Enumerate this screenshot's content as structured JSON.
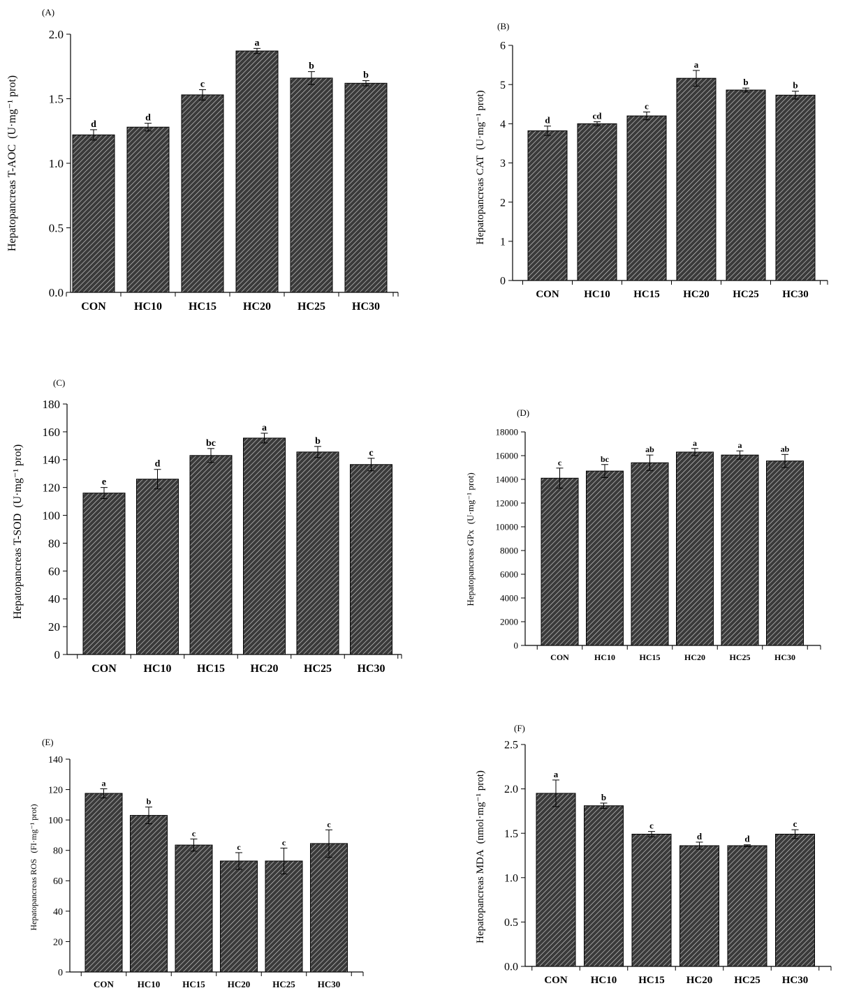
{
  "chart_data": [
    {
      "panel": "(A)",
      "type": "bar",
      "ylabel_main": "Hepatopancreas T-AOC",
      "ylabel_unit": "(U·mg⁻¹ prot)",
      "categories": [
        "CON",
        "HC10",
        "HC15",
        "HC20",
        "HC25",
        "HC30"
      ],
      "values": [
        1.22,
        1.28,
        1.53,
        1.87,
        1.66,
        1.62
      ],
      "errors": [
        0.04,
        0.03,
        0.04,
        0.02,
        0.05,
        0.02
      ],
      "letters": [
        "d",
        "d",
        "c",
        "a",
        "b",
        "b"
      ],
      "ylim": [
        0,
        2.0
      ],
      "yticks": [
        "0.0",
        "0.5",
        "1.0",
        "1.5",
        "2.0"
      ]
    },
    {
      "panel": "(B)",
      "type": "bar",
      "ylabel_main": "Hepatopancreas CAT",
      "ylabel_unit": "(U·mg⁻¹ prot)",
      "categories": [
        "CON",
        "HC10",
        "HC15",
        "HC20",
        "HC25",
        "HC30"
      ],
      "values": [
        3.82,
        4.0,
        4.2,
        5.16,
        4.86,
        4.73
      ],
      "errors": [
        0.12,
        0.05,
        0.1,
        0.2,
        0.05,
        0.1
      ],
      "letters": [
        "d",
        "cd",
        "c",
        "a",
        "b",
        "b"
      ],
      "ylim": [
        0,
        6
      ],
      "yticks": [
        "0",
        "1",
        "2",
        "3",
        "4",
        "5",
        "6"
      ]
    },
    {
      "panel": "(C)",
      "type": "bar",
      "ylabel_main": "Hepatopancreas T-SOD",
      "ylabel_unit": "(U·mg⁻¹ prot)",
      "categories": [
        "CON",
        "HC10",
        "HC15",
        "HC20",
        "HC25",
        "HC30"
      ],
      "values": [
        116,
        126,
        143,
        155.5,
        145.5,
        136.5
      ],
      "errors": [
        4,
        7,
        5,
        3.5,
        4,
        4.5
      ],
      "letters": [
        "e",
        "d",
        "bc",
        "a",
        "b",
        "c"
      ],
      "ylim": [
        0,
        180
      ],
      "yticks": [
        "0",
        "20",
        "40",
        "60",
        "80",
        "100",
        "120",
        "140",
        "160",
        "180"
      ]
    },
    {
      "panel": "(D)",
      "type": "bar",
      "ylabel_main": "Hepatopancreas GPx",
      "ylabel_unit": "(U·mg⁻¹ prot)",
      "categories": [
        "CON",
        "HC10",
        "HC15",
        "HC20",
        "HC25",
        "HC30"
      ],
      "values": [
        14100,
        14700,
        15400,
        16300,
        16050,
        15550
      ],
      "errors": [
        850,
        550,
        650,
        300,
        350,
        550
      ],
      "letters": [
        "c",
        "bc",
        "ab",
        "a",
        "a",
        "ab"
      ],
      "ylim": [
        0,
        18000
      ],
      "yticks": [
        "0",
        "2000",
        "4000",
        "6000",
        "8000",
        "10000",
        "12000",
        "14000",
        "16000",
        "18000"
      ]
    },
    {
      "panel": "(E)",
      "type": "bar",
      "ylabel_main": "Hepatopancreas ROS",
      "ylabel_unit": "(FI·mg⁻¹ prot)",
      "categories": [
        "CON",
        "HC10",
        "HC15",
        "HC20",
        "HC25",
        "HC30"
      ],
      "values": [
        117.5,
        103,
        83.5,
        73,
        73,
        84.5
      ],
      "errors": [
        3,
        5.5,
        4,
        5.5,
        8.5,
        9
      ],
      "letters": [
        "a",
        "b",
        "c",
        "c",
        "c",
        "c"
      ],
      "ylim": [
        0,
        140
      ],
      "yticks": [
        "0",
        "20",
        "40",
        "60",
        "80",
        "100",
        "120",
        "140"
      ]
    },
    {
      "panel": "(F)",
      "type": "bar",
      "ylabel_main": "Hepatopancreas MDA",
      "ylabel_unit": "(nmol·mg⁻¹ prot)",
      "categories": [
        "CON",
        "HC10",
        "HC15",
        "HC20",
        "HC25",
        "HC30"
      ],
      "values": [
        1.95,
        1.81,
        1.49,
        1.36,
        1.36,
        1.49
      ],
      "errors": [
        0.15,
        0.03,
        0.03,
        0.04,
        0.01,
        0.05
      ],
      "letters": [
        "a",
        "b",
        "c",
        "d",
        "d",
        "c"
      ],
      "ylim": [
        0,
        2.5
      ],
      "yticks": [
        "0.0",
        "0.5",
        "1.0",
        "1.5",
        "2.0",
        "2.5"
      ]
    }
  ],
  "colors": {
    "bar_fill": "#3a3a3a",
    "hatch": "#cfcfcf",
    "axis": "#000000"
  }
}
